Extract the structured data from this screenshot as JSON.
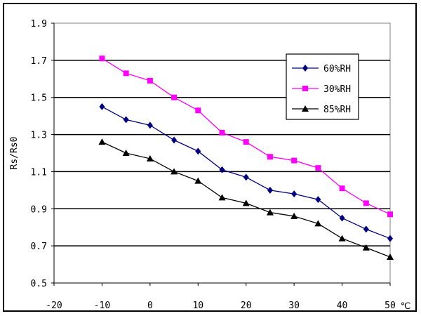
{
  "chart_data": {
    "type": "line",
    "title": "",
    "xlabel": "",
    "x_unit": "℃",
    "ylabel": "Rs/Rs0",
    "xlim": [
      -20,
      50
    ],
    "ylim": [
      0.5,
      1.9
    ],
    "xticks": [
      -20,
      -10,
      0,
      10,
      20,
      30,
      40,
      50
    ],
    "yticks": [
      "0.5",
      "0.7",
      "0.9",
      "1.1",
      "1.3",
      "1.5",
      "1.7",
      "1.9"
    ],
    "grid": "horizontal",
    "legend_position": "top-right",
    "x": [
      -10,
      -5,
      0,
      5,
      10,
      15,
      20,
      25,
      30,
      35,
      40,
      45,
      50
    ],
    "series": [
      {
        "name": "60%RH",
        "color": "#000080",
        "marker": "diamond",
        "values": [
          1.45,
          1.38,
          1.35,
          1.27,
          1.21,
          1.11,
          1.07,
          1.0,
          0.98,
          0.95,
          0.85,
          0.79,
          0.74
        ]
      },
      {
        "name": "30%RH",
        "color": "#FF00FF",
        "marker": "square",
        "values": [
          1.71,
          1.63,
          1.59,
          1.5,
          1.43,
          1.31,
          1.26,
          1.18,
          1.16,
          1.12,
          1.01,
          0.93,
          0.87
        ]
      },
      {
        "name": "85%RH",
        "color": "#000000",
        "marker": "triangle",
        "values": [
          1.26,
          1.2,
          1.17,
          1.1,
          1.05,
          0.96,
          0.93,
          0.88,
          0.86,
          0.82,
          0.74,
          0.69,
          0.64
        ]
      }
    ]
  }
}
